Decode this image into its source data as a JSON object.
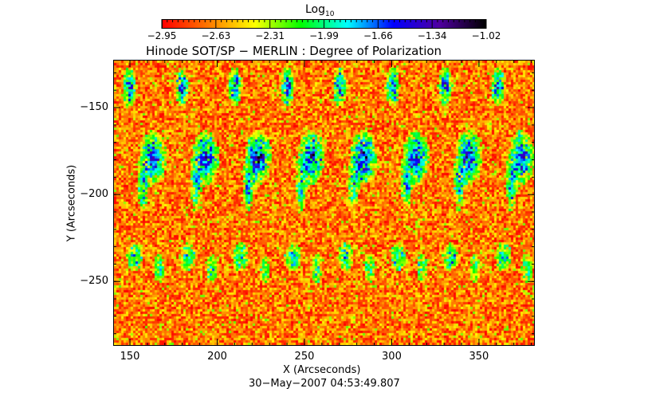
{
  "chart_data": {
    "type": "heatmap",
    "title": "Hinode SOT/SP − MERLIN : Degree of Polarization",
    "xlabel": "X (Arcseconds)",
    "ylabel": "Y (Arcseconds)",
    "xlim": [
      140.4,
      382
    ],
    "ylim": [
      -287,
      -122.5
    ],
    "xticks": [
      150,
      200,
      250,
      300,
      350
    ],
    "xtick_labels": [
      "150",
      "200",
      "250",
      "300",
      "350"
    ],
    "yticks": [
      -150,
      -200,
      -250
    ],
    "ytick_labels": [
      "−150",
      "−200",
      "−250"
    ],
    "timestamp": "30−May−2007 04:53:49.807",
    "colorbar": {
      "label_base": "Log",
      "label_sub": "10",
      "range": [
        -2.95,
        -1.02
      ],
      "tick_labels": [
        "−2.95",
        "−2.63",
        "−2.31",
        "−1.99",
        "−1.66",
        "−1.34",
        "−1.02"
      ],
      "colors": [
        "#ff0000",
        "#ff7a00",
        "#ffff00",
        "#00ff00",
        "#00ffff",
        "#0000ff",
        "#5000a0",
        "#000000"
      ]
    }
  }
}
